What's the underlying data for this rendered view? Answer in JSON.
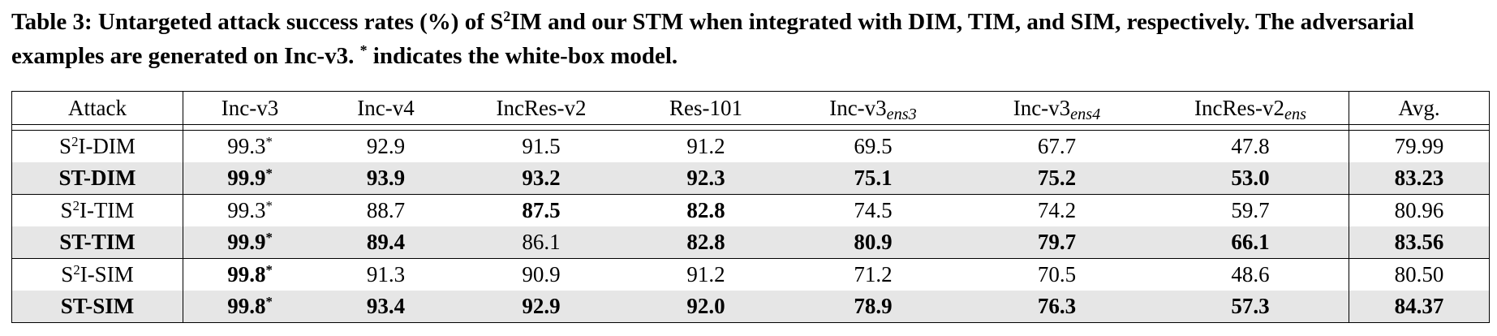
{
  "caption": [
    "Table 3: Untargeted attack success rates (%) of S",
    "2",
    "IM and our STM when integrated with DIM, TIM, and SIM, respectively. The adversarial examples are generated on Inc-v3. ",
    "*",
    " indicates the white-box model."
  ],
  "table": {
    "headers": [
      [
        "Attack"
      ],
      [
        "Inc-v3"
      ],
      [
        "Inc-v4"
      ],
      [
        "IncRes-v2"
      ],
      [
        "Res-101"
      ],
      [
        "Inc-v3",
        "ens3"
      ],
      [
        "Inc-v3",
        "ens4"
      ],
      [
        "IncRes-v2",
        "ens"
      ],
      [
        "Avg."
      ]
    ],
    "star": "*",
    "rows": [
      {
        "attack": [
          "S",
          "2",
          "I-DIM"
        ],
        "attack_bold": false,
        "shaded": false,
        "rule_after": false,
        "cells": [
          "99.3",
          "92.9",
          "91.5",
          "91.2",
          "69.5",
          "67.7",
          "47.8",
          "79.99"
        ],
        "starred": [
          0
        ],
        "bold": []
      },
      {
        "attack": [
          "ST-DIM"
        ],
        "attack_bold": true,
        "shaded": true,
        "rule_after": true,
        "cells": [
          "99.9",
          "93.9",
          "93.2",
          "92.3",
          "75.1",
          "75.2",
          "53.0",
          "83.23"
        ],
        "starred": [
          0
        ],
        "bold": [
          0,
          1,
          2,
          3,
          4,
          5,
          6,
          7
        ]
      },
      {
        "attack": [
          "S",
          "2",
          "I-TIM"
        ],
        "attack_bold": false,
        "shaded": false,
        "rule_after": false,
        "cells": [
          "99.3",
          "88.7",
          "87.5",
          "82.8",
          "74.5",
          "74.2",
          "59.7",
          "80.96"
        ],
        "starred": [
          0
        ],
        "bold": [
          2,
          3
        ]
      },
      {
        "attack": [
          "ST-TIM"
        ],
        "attack_bold": true,
        "shaded": true,
        "rule_after": true,
        "cells": [
          "99.9",
          "89.4",
          "86.1",
          "82.8",
          "80.9",
          "79.7",
          "66.1",
          "83.56"
        ],
        "starred": [
          0
        ],
        "bold": [
          0,
          1,
          3,
          4,
          5,
          6,
          7
        ]
      },
      {
        "attack": [
          "S",
          "2",
          "I-SIM"
        ],
        "attack_bold": false,
        "shaded": false,
        "rule_after": false,
        "cells": [
          "99.8",
          "91.3",
          "90.9",
          "91.2",
          "71.2",
          "70.5",
          "48.6",
          "80.50"
        ],
        "starred": [
          0
        ],
        "bold": [
          0
        ]
      },
      {
        "attack": [
          "ST-SIM"
        ],
        "attack_bold": true,
        "shaded": true,
        "rule_after": false,
        "cells": [
          "99.8",
          "93.4",
          "92.9",
          "92.0",
          "78.9",
          "76.3",
          "57.3",
          "84.37"
        ],
        "starred": [
          0
        ],
        "bold": [
          0,
          1,
          2,
          3,
          4,
          5,
          6,
          7
        ]
      }
    ]
  }
}
